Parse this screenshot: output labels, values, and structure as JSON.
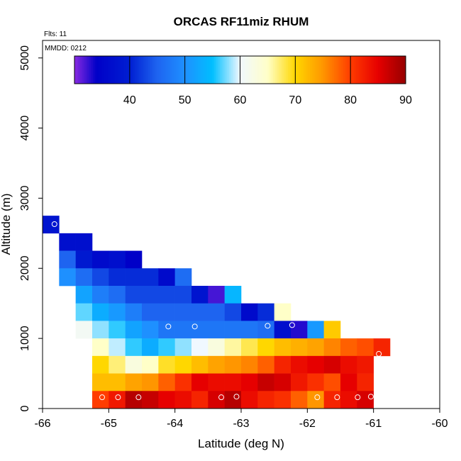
{
  "chart_data": {
    "type": "heatmap",
    "title": "ORCAS RF11miz RHUM",
    "annotations": {
      "flights": "Flts: 11",
      "date": "MMDD: 0212"
    },
    "xlabel": "Latitude (deg N)",
    "ylabel": "Altitude (m)",
    "xlim": [
      -66,
      -60
    ],
    "ylim": [
      0,
      5250
    ],
    "x_ticks": [
      -66,
      -65,
      -64,
      -63,
      -62,
      -61,
      -60
    ],
    "x_tick_labels": [
      "-66",
      "-65",
      "-64",
      "-63",
      "-62",
      "-61",
      "-60"
    ],
    "y_ticks": [
      0,
      1000,
      2000,
      3000,
      4000,
      5000
    ],
    "y_tick_labels": [
      "0",
      "1000",
      "2000",
      "3000",
      "4000",
      "5000"
    ],
    "colorbar": {
      "min": 30,
      "max": 90,
      "ticks": [
        40,
        50,
        60,
        70,
        80,
        90
      ],
      "tick_labels": [
        "40",
        "50",
        "60",
        "70",
        "80",
        "90"
      ]
    },
    "bin_width_lat": 0.25,
    "bin_height_m": 250,
    "cells": [
      {
        "lat": -65.875,
        "alt": 2625,
        "rh": 38
      },
      {
        "lat": -65.625,
        "alt": 2375,
        "rh": 37
      },
      {
        "lat": -65.375,
        "alt": 2375,
        "rh": 37
      },
      {
        "lat": -65.625,
        "alt": 2125,
        "rh": 45
      },
      {
        "lat": -65.375,
        "alt": 2125,
        "rh": 39
      },
      {
        "lat": -65.125,
        "alt": 2125,
        "rh": 36
      },
      {
        "lat": -64.875,
        "alt": 2125,
        "rh": 37
      },
      {
        "lat": -64.625,
        "alt": 2125,
        "rh": 34
      },
      {
        "lat": -65.625,
        "alt": 1875,
        "rh": 50
      },
      {
        "lat": -65.375,
        "alt": 1875,
        "rh": 46
      },
      {
        "lat": -65.125,
        "alt": 1875,
        "rh": 43
      },
      {
        "lat": -64.875,
        "alt": 1875,
        "rh": 41
      },
      {
        "lat": -64.625,
        "alt": 1875,
        "rh": 41
      },
      {
        "lat": -64.375,
        "alt": 1875,
        "rh": 41
      },
      {
        "lat": -64.125,
        "alt": 1875,
        "rh": 36
      },
      {
        "lat": -63.875,
        "alt": 1875,
        "rh": 46
      },
      {
        "lat": -65.375,
        "alt": 1625,
        "rh": 52
      },
      {
        "lat": -65.125,
        "alt": 1625,
        "rh": 48
      },
      {
        "lat": -64.875,
        "alt": 1625,
        "rh": 46
      },
      {
        "lat": -64.625,
        "alt": 1625,
        "rh": 43
      },
      {
        "lat": -64.375,
        "alt": 1625,
        "rh": 43
      },
      {
        "lat": -64.125,
        "alt": 1625,
        "rh": 43
      },
      {
        "lat": -63.875,
        "alt": 1625,
        "rh": 43
      },
      {
        "lat": -63.625,
        "alt": 1625,
        "rh": 38
      },
      {
        "lat": -63.375,
        "alt": 1625,
        "rh": 32
      },
      {
        "lat": -63.125,
        "alt": 1625,
        "rh": 54
      },
      {
        "lat": -65.375,
        "alt": 1375,
        "rh": 57
      },
      {
        "lat": -65.125,
        "alt": 1375,
        "rh": 53
      },
      {
        "lat": -64.875,
        "alt": 1375,
        "rh": 51
      },
      {
        "lat": -64.625,
        "alt": 1375,
        "rh": 48
      },
      {
        "lat": -64.375,
        "alt": 1375,
        "rh": 45
      },
      {
        "lat": -64.125,
        "alt": 1375,
        "rh": 45
      },
      {
        "lat": -63.875,
        "alt": 1375,
        "rh": 45
      },
      {
        "lat": -63.625,
        "alt": 1375,
        "rh": 45
      },
      {
        "lat": -63.375,
        "alt": 1375,
        "rh": 45
      },
      {
        "lat": -63.125,
        "alt": 1375,
        "rh": 43
      },
      {
        "lat": -62.875,
        "alt": 1375,
        "rh": 36
      },
      {
        "lat": -62.625,
        "alt": 1375,
        "rh": 41
      },
      {
        "lat": -62.375,
        "alt": 1375,
        "rh": 65
      },
      {
        "lat": -65.375,
        "alt": 1125,
        "rh": 61
      },
      {
        "lat": -65.125,
        "alt": 1125,
        "rh": 58
      },
      {
        "lat": -64.875,
        "alt": 1125,
        "rh": 56
      },
      {
        "lat": -64.625,
        "alt": 1125,
        "rh": 52
      },
      {
        "lat": -64.375,
        "alt": 1125,
        "rh": 50
      },
      {
        "lat": -64.125,
        "alt": 1125,
        "rh": 47
      },
      {
        "lat": -63.875,
        "alt": 1125,
        "rh": 47
      },
      {
        "lat": -63.625,
        "alt": 1125,
        "rh": 47
      },
      {
        "lat": -63.375,
        "alt": 1125,
        "rh": 47
      },
      {
        "lat": -63.125,
        "alt": 1125,
        "rh": 47
      },
      {
        "lat": -62.875,
        "alt": 1125,
        "rh": 47
      },
      {
        "lat": -62.625,
        "alt": 1125,
        "rh": 46
      },
      {
        "lat": -62.375,
        "alt": 1125,
        "rh": 37
      },
      {
        "lat": -62.125,
        "alt": 1125,
        "rh": 33
      },
      {
        "lat": -61.875,
        "alt": 1125,
        "rh": 51
      },
      {
        "lat": -61.625,
        "alt": 1125,
        "rh": 71
      },
      {
        "lat": -65.125,
        "alt": 875,
        "rh": 65
      },
      {
        "lat": -64.875,
        "alt": 875,
        "rh": 59
      },
      {
        "lat": -64.625,
        "alt": 875,
        "rh": 56
      },
      {
        "lat": -64.375,
        "alt": 875,
        "rh": 53
      },
      {
        "lat": -64.125,
        "alt": 875,
        "rh": 56
      },
      {
        "lat": -63.875,
        "alt": 875,
        "rh": 58
      },
      {
        "lat": -63.625,
        "alt": 875,
        "rh": 60
      },
      {
        "lat": -63.375,
        "alt": 875,
        "rh": 63
      },
      {
        "lat": -63.125,
        "alt": 875,
        "rh": 66
      },
      {
        "lat": -62.875,
        "alt": 875,
        "rh": 68
      },
      {
        "lat": -62.625,
        "alt": 875,
        "rh": 70
      },
      {
        "lat": -62.375,
        "alt": 875,
        "rh": 72
      },
      {
        "lat": -62.125,
        "alt": 875,
        "rh": 73
      },
      {
        "lat": -61.875,
        "alt": 875,
        "rh": 74
      },
      {
        "lat": -61.625,
        "alt": 875,
        "rh": 76
      },
      {
        "lat": -61.375,
        "alt": 875,
        "rh": 78
      },
      {
        "lat": -61.125,
        "alt": 875,
        "rh": 79
      },
      {
        "lat": -60.875,
        "alt": 875,
        "rh": 82
      },
      {
        "lat": -65.125,
        "alt": 625,
        "rh": 70
      },
      {
        "lat": -64.875,
        "alt": 625,
        "rh": 67
      },
      {
        "lat": -64.625,
        "alt": 625,
        "rh": 63
      },
      {
        "lat": -64.375,
        "alt": 625,
        "rh": 65
      },
      {
        "lat": -64.125,
        "alt": 625,
        "rh": 69
      },
      {
        "lat": -63.875,
        "alt": 625,
        "rh": 70
      },
      {
        "lat": -63.625,
        "alt": 625,
        "rh": 72
      },
      {
        "lat": -63.375,
        "alt": 625,
        "rh": 74
      },
      {
        "lat": -63.125,
        "alt": 625,
        "rh": 75
      },
      {
        "lat": -62.875,
        "alt": 625,
        "rh": 76
      },
      {
        "lat": -62.625,
        "alt": 625,
        "rh": 78
      },
      {
        "lat": -62.375,
        "alt": 625,
        "rh": 82
      },
      {
        "lat": -62.125,
        "alt": 625,
        "rh": 84
      },
      {
        "lat": -61.875,
        "alt": 625,
        "rh": 85
      },
      {
        "lat": -61.625,
        "alt": 625,
        "rh": 86
      },
      {
        "lat": -61.375,
        "alt": 625,
        "rh": 84
      },
      {
        "lat": -61.125,
        "alt": 625,
        "rh": 83
      },
      {
        "lat": -65.125,
        "alt": 375,
        "rh": 72
      },
      {
        "lat": -64.875,
        "alt": 375,
        "rh": 72
      },
      {
        "lat": -64.625,
        "alt": 375,
        "rh": 74
      },
      {
        "lat": -64.375,
        "alt": 375,
        "rh": 75
      },
      {
        "lat": -64.125,
        "alt": 375,
        "rh": 78
      },
      {
        "lat": -63.875,
        "alt": 375,
        "rh": 81
      },
      {
        "lat": -63.625,
        "alt": 375,
        "rh": 85
      },
      {
        "lat": -63.375,
        "alt": 375,
        "rh": 84
      },
      {
        "lat": -63.125,
        "alt": 375,
        "rh": 84
      },
      {
        "lat": -62.875,
        "alt": 375,
        "rh": 85
      },
      {
        "lat": -62.625,
        "alt": 375,
        "rh": 87
      },
      {
        "lat": -62.375,
        "alt": 375,
        "rh": 86
      },
      {
        "lat": -62.125,
        "alt": 375,
        "rh": 83
      },
      {
        "lat": -61.875,
        "alt": 375,
        "rh": 81
      },
      {
        "lat": -61.625,
        "alt": 375,
        "rh": 79
      },
      {
        "lat": -61.375,
        "alt": 375,
        "rh": 85
      },
      {
        "lat": -61.125,
        "alt": 375,
        "rh": 82
      },
      {
        "lat": -65.125,
        "alt": 125,
        "rh": 80
      },
      {
        "lat": -64.875,
        "alt": 125,
        "rh": 83
      },
      {
        "lat": -64.625,
        "alt": 125,
        "rh": 88
      },
      {
        "lat": -64.375,
        "alt": 125,
        "rh": 87
      },
      {
        "lat": -64.125,
        "alt": 125,
        "rh": 85
      },
      {
        "lat": -63.875,
        "alt": 125,
        "rh": 84
      },
      {
        "lat": -63.625,
        "alt": 125,
        "rh": 82
      },
      {
        "lat": -63.375,
        "alt": 125,
        "rh": 86
      },
      {
        "lat": -63.125,
        "alt": 125,
        "rh": 88
      },
      {
        "lat": -62.875,
        "alt": 125,
        "rh": 84
      },
      {
        "lat": -62.625,
        "alt": 125,
        "rh": 82
      },
      {
        "lat": -62.375,
        "alt": 125,
        "rh": 81
      },
      {
        "lat": -62.125,
        "alt": 125,
        "rh": 78
      },
      {
        "lat": -61.875,
        "alt": 125,
        "rh": 75
      },
      {
        "lat": -61.625,
        "alt": 125,
        "rh": 82
      },
      {
        "lat": -61.375,
        "alt": 125,
        "rh": 84
      },
      {
        "lat": -61.125,
        "alt": 125,
        "rh": 86
      }
    ],
    "flight_markers": [
      {
        "lat": -65.82,
        "alt": 2630
      },
      {
        "lat": -65.1,
        "alt": 160
      },
      {
        "lat": -64.86,
        "alt": 160
      },
      {
        "lat": -64.55,
        "alt": 160
      },
      {
        "lat": -63.3,
        "alt": 160
      },
      {
        "lat": -63.07,
        "alt": 170
      },
      {
        "lat": -61.85,
        "alt": 160
      },
      {
        "lat": -61.55,
        "alt": 160
      },
      {
        "lat": -61.24,
        "alt": 160
      },
      {
        "lat": -61.04,
        "alt": 170
      },
      {
        "lat": -64.1,
        "alt": 1170
      },
      {
        "lat": -63.7,
        "alt": 1170
      },
      {
        "lat": -62.6,
        "alt": 1180
      },
      {
        "lat": -62.23,
        "alt": 1190
      },
      {
        "lat": -60.92,
        "alt": 780
      }
    ]
  }
}
